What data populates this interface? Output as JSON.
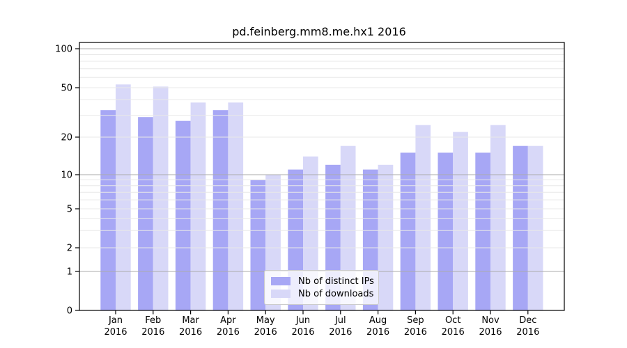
{
  "figure": {
    "background": "#ffffff",
    "axis_color": "#000000",
    "grid_color_major": "#ababab",
    "grid_color_minor": "#e8e8e8"
  },
  "chart_data": {
    "type": "bar",
    "title": "pd.feinberg.mm8.me.hx1 2016",
    "categories": [
      "Jan",
      "Feb",
      "Mar",
      "Apr",
      "May",
      "Jun",
      "Jul",
      "Aug",
      "Sep",
      "Oct",
      "Nov",
      "Dec"
    ],
    "year_label": "2016",
    "series": [
      {
        "name": "Nb of distinct IPs",
        "color": "#a7a7f5",
        "values": [
          33,
          29,
          27,
          33,
          9,
          11,
          12,
          11,
          15,
          15,
          15,
          17
        ]
      },
      {
        "name": "Nb of downloads",
        "color": "#d8d8f8",
        "values": [
          53,
          51,
          38,
          38,
          10,
          14,
          17,
          12,
          25,
          22,
          25,
          17
        ]
      }
    ],
    "yscale": "symlog",
    "ylim": [
      0,
      111
    ],
    "y_ticks": [
      0,
      1,
      2,
      5,
      10,
      20,
      50,
      100
    ],
    "major_gridlines": [
      1,
      10,
      100
    ],
    "minor_gridlines": [
      2,
      3,
      4,
      5,
      6,
      7,
      8,
      9,
      20,
      30,
      40,
      50,
      60,
      70,
      80,
      90
    ],
    "legend_position": "bottom-center",
    "grid": "on"
  }
}
